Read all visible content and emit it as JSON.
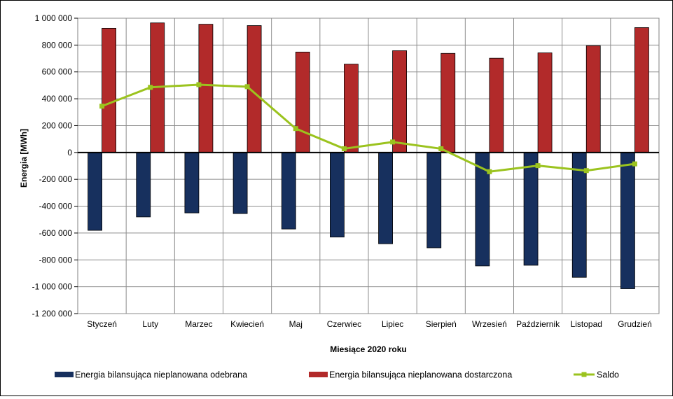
{
  "chart_data": {
    "type": "bar",
    "xlabel": "Miesiące 2020  roku",
    "ylabel": "Energia [MWh]",
    "ylim": [
      -1200000,
      1000000
    ],
    "ytick_step": 200000,
    "y_tick_labels": [
      "1 000 000",
      "800 000",
      "600 000",
      "400 000",
      "200 000",
      "0",
      "-200 000",
      "-400 000",
      "-600 000",
      "-800 000",
      "-1 000 000",
      "-1 200 000"
    ],
    "categories": [
      "Styczeń",
      "Luty",
      "Marzec",
      "Kwiecień",
      "Maj",
      "Czerwiec",
      "Lipiec",
      "Sierpień",
      "Wrzesień",
      "Październik",
      "Listopad",
      "Grudzień"
    ],
    "grid": true,
    "legend_position": "bottom",
    "series": [
      {
        "name": "Energia bilansująca nieplanowana odebrana",
        "kind": "bar",
        "color": "#17305e",
        "values": [
          -580000,
          -480000,
          -450000,
          -455000,
          -570000,
          -630000,
          -680000,
          -710000,
          -845000,
          -840000,
          -930000,
          -1015000
        ]
      },
      {
        "name": "Energia bilansująca nieplanowana dostarczona",
        "kind": "bar",
        "color": "#b22a2a",
        "values": [
          925000,
          965000,
          955000,
          945000,
          748000,
          658000,
          758000,
          738000,
          702000,
          742000,
          795000,
          930000
        ]
      },
      {
        "name": "Saldo",
        "kind": "line",
        "color": "#9bc31e",
        "values": [
          345000,
          485000,
          505000,
          490000,
          178000,
          28000,
          78000,
          28000,
          -143000,
          -98000,
          -135000,
          -85000
        ]
      }
    ]
  }
}
